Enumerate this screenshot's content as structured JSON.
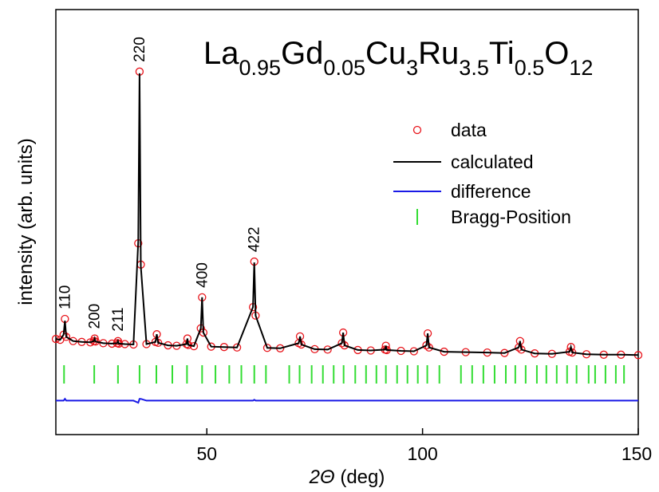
{
  "chart_data": {
    "type": "rietveld",
    "title_parts": [
      "La",
      "0.95",
      "Gd",
      "0.05",
      "Cu",
      "3",
      "Ru",
      "3.5",
      "Ti",
      "0.5",
      "O",
      "12"
    ],
    "xlabel_parts": [
      "2Θ",
      " (deg)"
    ],
    "ylabel": "intensity (arb. units)",
    "xlim": [
      15,
      150
    ],
    "ylim": [
      0,
      100
    ],
    "xticks": [
      50,
      100,
      150
    ],
    "x": [
      15,
      16,
      16.8,
      17.1,
      17.4,
      19,
      21,
      23,
      23.8,
      24.0,
      24.2,
      26,
      28,
      29.2,
      29.4,
      29.6,
      31,
      33,
      34.1,
      34.4,
      34.7,
      36,
      38.1,
      38.4,
      38.7,
      41,
      43,
      45.3,
      45.5,
      45.7,
      47,
      48.6,
      48.9,
      49.2,
      51,
      54,
      57,
      60.7,
      61.0,
      61.3,
      64,
      67,
      71.3,
      71.6,
      71.9,
      75,
      78,
      81.3,
      81.6,
      81.9,
      85,
      88,
      91.3,
      91.5,
      91.7,
      95,
      98,
      100.9,
      101.2,
      101.5,
      105,
      110,
      115,
      119,
      122.3,
      122.6,
      122.9,
      126,
      130,
      134.1,
      134.4,
      134.7,
      138,
      142,
      146,
      150
    ],
    "series": [
      {
        "name": "data",
        "color": "#e8141b",
        "values": [
          22.5,
          22.3,
          23.5,
          27.2,
          23.0,
          22.0,
          21.8,
          21.7,
          22.0,
          22.6,
          21.9,
          21.5,
          21.4,
          21.5,
          22.0,
          21.4,
          21.3,
          21.2,
          45.0,
          85.4,
          40.0,
          21.3,
          21.8,
          23.6,
          21.6,
          21.0,
          20.9,
          21.3,
          22.6,
          21.1,
          20.8,
          25.0,
          32.3,
          24.0,
          20.7,
          20.6,
          20.5,
          30.0,
          40.7,
          28.0,
          20.4,
          20.3,
          21.5,
          23.1,
          21.2,
          20.1,
          20.0,
          21.5,
          24.0,
          21.0,
          19.9,
          19.8,
          20.0,
          20.9,
          19.9,
          19.7,
          19.6,
          21.0,
          23.8,
          20.5,
          19.5,
          19.4,
          19.3,
          19.2,
          20.5,
          22.0,
          20.0,
          19.1,
          19.0,
          19.5,
          20.6,
          19.3,
          18.9,
          18.8,
          18.8,
          18.7
        ]
      },
      {
        "name": "calculated",
        "color": "#000000",
        "values": [
          22.5,
          22.3,
          23.5,
          26.8,
          23.0,
          22.0,
          21.8,
          21.7,
          22.0,
          22.6,
          21.9,
          21.5,
          21.4,
          21.5,
          22.0,
          21.4,
          21.3,
          21.2,
          45.5,
          85.0,
          39.6,
          21.3,
          21.8,
          23.6,
          21.6,
          21.0,
          20.9,
          21.3,
          22.6,
          21.1,
          20.8,
          25.0,
          32.3,
          24.0,
          20.7,
          20.6,
          20.5,
          30.0,
          40.5,
          28.0,
          20.4,
          20.3,
          21.5,
          23.1,
          21.2,
          20.1,
          20.0,
          21.5,
          24.0,
          21.0,
          19.9,
          19.8,
          20.0,
          20.9,
          19.9,
          19.7,
          19.6,
          21.0,
          23.8,
          20.5,
          19.5,
          19.4,
          19.3,
          19.2,
          20.5,
          22.0,
          20.0,
          19.1,
          19.0,
          19.5,
          20.6,
          19.3,
          18.9,
          18.8,
          18.8,
          18.7
        ]
      },
      {
        "name": "difference",
        "color": "#1a1ae6",
        "values": [
          8,
          8,
          8,
          8.4,
          8,
          8,
          8,
          8,
          8,
          8,
          8,
          8,
          8,
          8,
          8,
          8,
          8,
          8,
          7.5,
          8.4,
          8.4,
          8,
          8,
          8,
          8,
          8,
          8,
          8,
          8,
          8,
          8,
          8,
          8,
          8,
          8,
          8,
          8,
          8,
          8.2,
          8,
          8,
          8,
          8,
          8,
          8,
          8,
          8,
          8,
          8,
          8,
          8,
          8,
          8,
          8,
          8,
          8,
          8,
          8,
          8,
          8,
          8,
          8,
          8,
          8,
          8,
          8,
          8,
          8,
          8,
          8,
          8,
          8,
          8,
          8,
          8,
          8
        ]
      }
    ],
    "bragg": {
      "name": "Bragg-Position",
      "color": "#33dd33",
      "x": [
        16.9,
        23.9,
        29.4,
        34.4,
        38.3,
        42.0,
        45.4,
        48.9,
        52.0,
        55.2,
        58.0,
        61.0,
        63.7,
        69.1,
        71.5,
        74.3,
        76.9,
        79.4,
        81.7,
        84.4,
        86.9,
        89.3,
        91.5,
        94.1,
        96.5,
        98.9,
        101.1,
        103.9,
        108.9,
        111.5,
        114.1,
        116.7,
        119.3,
        121.5,
        123.9,
        126.5,
        128.7,
        131.1,
        133.5,
        135.7,
        138.5,
        140.0,
        142.4,
        144.8,
        146.7
      ]
    },
    "annotations": [
      {
        "text": "110",
        "x": 17.1
      },
      {
        "text": "200",
        "x": 24.0
      },
      {
        "text": "211",
        "x": 29.4
      },
      {
        "text": "220",
        "x": 34.4
      },
      {
        "text": "400",
        "x": 48.9
      },
      {
        "text": "422",
        "x": 61.0
      }
    ]
  }
}
